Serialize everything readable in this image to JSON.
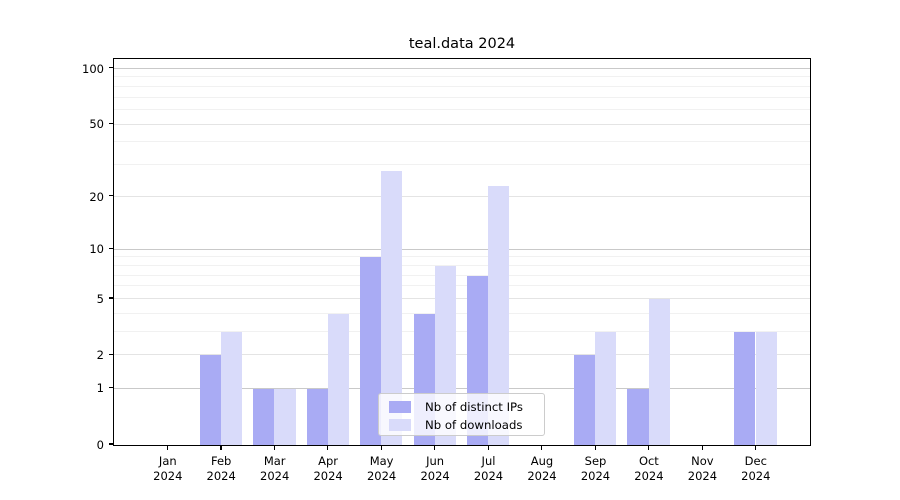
{
  "title": "teal.data 2024",
  "chart_data": {
    "type": "bar",
    "title": "teal.data 2024",
    "categories": [
      "Jan",
      "Feb",
      "Mar",
      "Apr",
      "May",
      "Jun",
      "Jul",
      "Aug",
      "Sep",
      "Oct",
      "Nov",
      "Dec"
    ],
    "year": "2024",
    "series": [
      {
        "name": "Nb of distinct IPs",
        "color": "#a9abf4",
        "values": [
          0,
          2,
          1,
          1,
          9,
          4,
          7,
          0,
          2,
          1,
          0,
          3
        ]
      },
      {
        "name": "Nb of downloads",
        "color": "#d9dbfa",
        "values": [
          0,
          3,
          1,
          4,
          28,
          8,
          23,
          0,
          3,
          5,
          0,
          3
        ]
      }
    ],
    "yscale": "log10(1+v)",
    "yticks": [
      0,
      1,
      2,
      5,
      10,
      20,
      50,
      100
    ],
    "major_gridlines": [
      1,
      10,
      100
    ],
    "minor_gridlines": [
      3,
      4,
      6,
      7,
      8,
      9,
      30,
      40,
      60,
      70,
      80,
      90
    ],
    "ylim": [
      0,
      115
    ],
    "grid": "horizontal",
    "legend_position": "lower-center-inside"
  }
}
